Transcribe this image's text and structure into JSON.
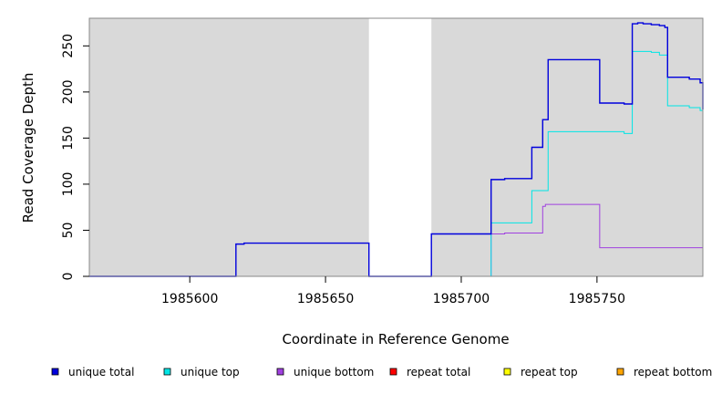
{
  "chart_data": {
    "type": "line",
    "xlabel": "Coordinate in Reference Genome",
    "ylabel": "Read Coverage Depth",
    "xlim": [
      1985563,
      1985789
    ],
    "ylim": [
      0,
      280
    ],
    "x_ticks": [
      1985600,
      1985650,
      1985700,
      1985750
    ],
    "x_tick_labels": [
      "1985600",
      "1985650",
      "1985700",
      "1985750"
    ],
    "y_ticks": [
      0,
      50,
      100,
      150,
      200,
      250
    ],
    "y_tick_labels": [
      "0",
      "50",
      "100",
      "150",
      "200",
      "250"
    ],
    "background_regions": [
      {
        "from": 1985563,
        "to": 1985666,
        "color": "#d9d9d9"
      },
      {
        "from": 1985689,
        "to": 1985789,
        "color": "#d9d9d9"
      }
    ],
    "series": [
      {
        "name": "unique total",
        "color": "#0000dd",
        "points": [
          [
            1985563,
            0
          ],
          [
            1985617,
            0
          ],
          [
            1985617,
            35
          ],
          [
            1985620,
            35
          ],
          [
            1985620,
            36
          ],
          [
            1985666,
            36
          ],
          [
            1985666,
            0
          ],
          [
            1985689,
            0
          ],
          [
            1985689,
            46
          ],
          [
            1985711,
            46
          ],
          [
            1985711,
            105
          ],
          [
            1985716,
            105
          ],
          [
            1985716,
            106
          ],
          [
            1985726,
            106
          ],
          [
            1985726,
            140
          ],
          [
            1985730,
            140
          ],
          [
            1985730,
            170
          ],
          [
            1985732,
            170
          ],
          [
            1985732,
            235
          ],
          [
            1985751,
            235
          ],
          [
            1985751,
            188
          ],
          [
            1985760,
            188
          ],
          [
            1985760,
            187
          ],
          [
            1985763,
            187
          ],
          [
            1985763,
            274
          ],
          [
            1985765,
            274
          ],
          [
            1985765,
            275
          ],
          [
            1985767,
            275
          ],
          [
            1985767,
            274
          ],
          [
            1985770,
            274
          ],
          [
            1985770,
            273
          ],
          [
            1985773,
            273
          ],
          [
            1985773,
            272
          ],
          [
            1985775,
            272
          ],
          [
            1985775,
            270
          ],
          [
            1985776,
            270
          ],
          [
            1985776,
            216
          ],
          [
            1985784,
            216
          ],
          [
            1985784,
            214
          ],
          [
            1985788,
            214
          ],
          [
            1985788,
            210
          ],
          [
            1985789,
            210
          ],
          [
            1985789,
            181
          ]
        ]
      },
      {
        "name": "unique top",
        "color": "#00e5e5",
        "points": [
          [
            1985620,
            0
          ],
          [
            1985666,
            0
          ],
          [
            1985689,
            0
          ],
          [
            1985711,
            0
          ],
          [
            1985711,
            58
          ],
          [
            1985726,
            58
          ],
          [
            1985726,
            93
          ],
          [
            1985732,
            93
          ],
          [
            1985732,
            157
          ],
          [
            1985760,
            157
          ],
          [
            1985760,
            155
          ],
          [
            1985763,
            155
          ],
          [
            1985763,
            244
          ],
          [
            1985770,
            244
          ],
          [
            1985770,
            243
          ],
          [
            1985773,
            243
          ],
          [
            1985773,
            240
          ],
          [
            1985776,
            240
          ],
          [
            1985776,
            185
          ],
          [
            1985784,
            185
          ],
          [
            1985784,
            183
          ],
          [
            1985788,
            183
          ],
          [
            1985788,
            180
          ],
          [
            1985789,
            180
          ],
          [
            1985789,
            150
          ]
        ]
      },
      {
        "name": "unique bottom",
        "color": "#a040e0",
        "points": [
          [
            1985620,
            0
          ],
          [
            1985666,
            0
          ],
          [
            1985689,
            0
          ],
          [
            1985711,
            0
          ],
          [
            1985711,
            46
          ],
          [
            1985716,
            46
          ],
          [
            1985716,
            47
          ],
          [
            1985730,
            47
          ],
          [
            1985730,
            76
          ],
          [
            1985731,
            76
          ],
          [
            1985731,
            78
          ],
          [
            1985751,
            78
          ],
          [
            1985751,
            31
          ],
          [
            1985789,
            31
          ]
        ]
      },
      {
        "name": "repeat total",
        "color": "#dd0000",
        "points": [
          [
            1985711,
            0
          ],
          [
            1985789,
            0
          ]
        ]
      },
      {
        "name": "repeat top",
        "color": "#e0e000",
        "points": [
          [
            1985711,
            0
          ],
          [
            1985789,
            0
          ]
        ]
      },
      {
        "name": "repeat bottom",
        "color": "#ff9900",
        "points": [
          [
            1985711,
            0
          ],
          [
            1985789,
            0
          ]
        ]
      }
    ],
    "legend": [
      {
        "label": "unique total",
        "color": "#0000dd"
      },
      {
        "label": "unique top",
        "color": "#00e5e5"
      },
      {
        "label": "unique bottom",
        "color": "#a040e0"
      },
      {
        "label": "repeat total",
        "color": "#ff0000"
      },
      {
        "label": "repeat top",
        "color": "#ffff00"
      },
      {
        "label": "repeat bottom",
        "color": "#ffa500"
      }
    ],
    "legend_position": "bottom",
    "grid": false
  }
}
